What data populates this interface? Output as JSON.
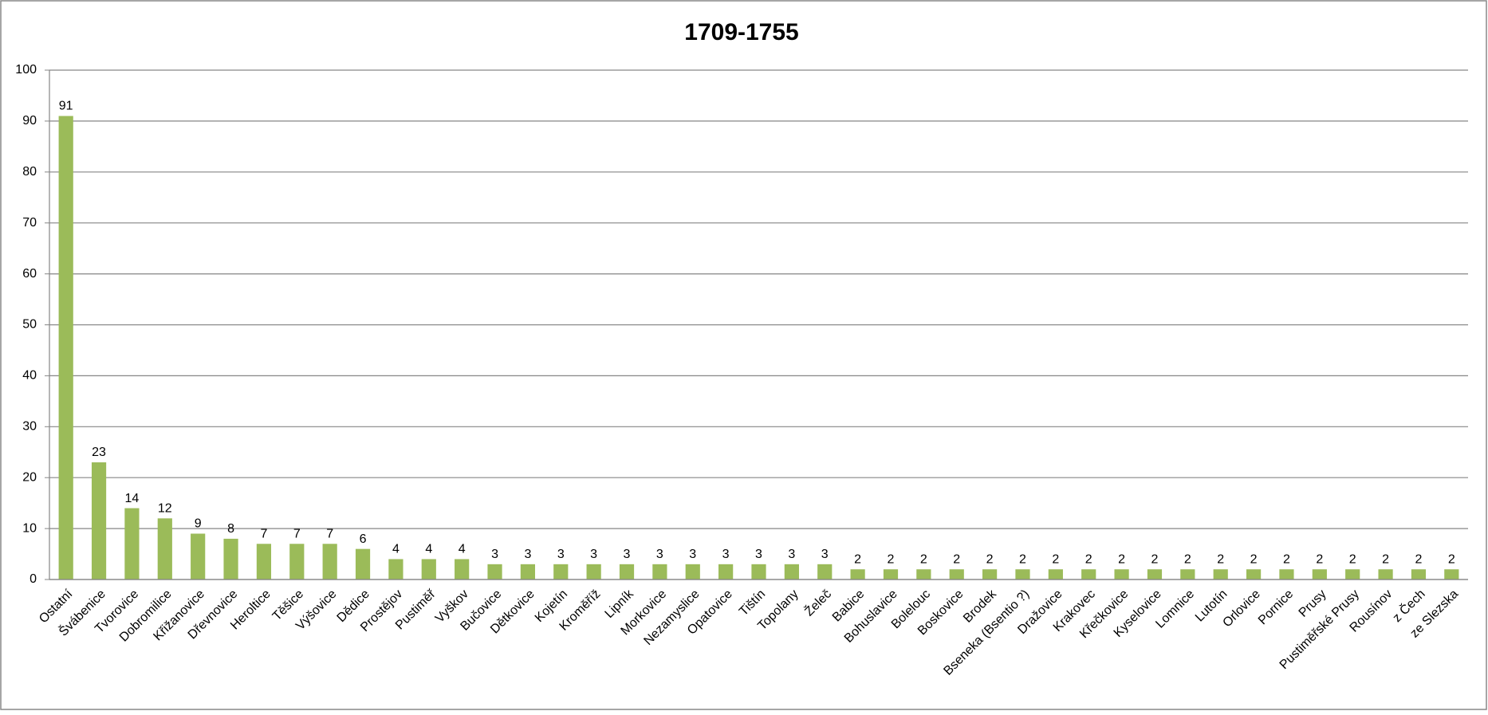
{
  "chart_data": {
    "type": "bar",
    "title": "1709-1755",
    "categories": [
      "Ostatní",
      "Švábenice",
      "Tvorovice",
      "Dobromilice",
      "Křižanovice",
      "Dřevnovice",
      "Heroltice",
      "Těšice",
      "Výšovice",
      "Dědice",
      "Prostějov",
      "Pustiměř",
      "Vyškov",
      "Bučovice",
      "Dětkovice",
      "Kojetín",
      "Kroměříž",
      "Lipník",
      "Morkovice",
      "Nezamyslice",
      "Opatovice",
      "Tištín",
      "Topolany",
      "Želeč",
      "Babice",
      "Bohuslavice",
      "Bolelouc",
      "Boskovice",
      "Brodek",
      "Bseneka (Bsentio ?)",
      "Dražovice",
      "Krakovec",
      "Křečkovice",
      "Kyselovice",
      "Lomnice",
      "Lutotín",
      "Orlovice",
      "Pornice",
      "Prusy",
      "Pustiměřské Prusy",
      "Rousínov",
      "z Čech",
      "ze Slezska"
    ],
    "values": [
      91,
      23,
      14,
      12,
      9,
      8,
      7,
      7,
      7,
      6,
      4,
      4,
      4,
      3,
      3,
      3,
      3,
      3,
      3,
      3,
      3,
      3,
      3,
      3,
      2,
      2,
      2,
      2,
      2,
      2,
      2,
      2,
      2,
      2,
      2,
      2,
      2,
      2,
      2,
      2,
      2,
      2,
      2
    ],
    "color": "#9bbb59",
    "ylim": [
      0,
      100
    ],
    "yticks": [
      0,
      10,
      20,
      30,
      40,
      50,
      60,
      70,
      80,
      90,
      100
    ],
    "grid": true
  }
}
